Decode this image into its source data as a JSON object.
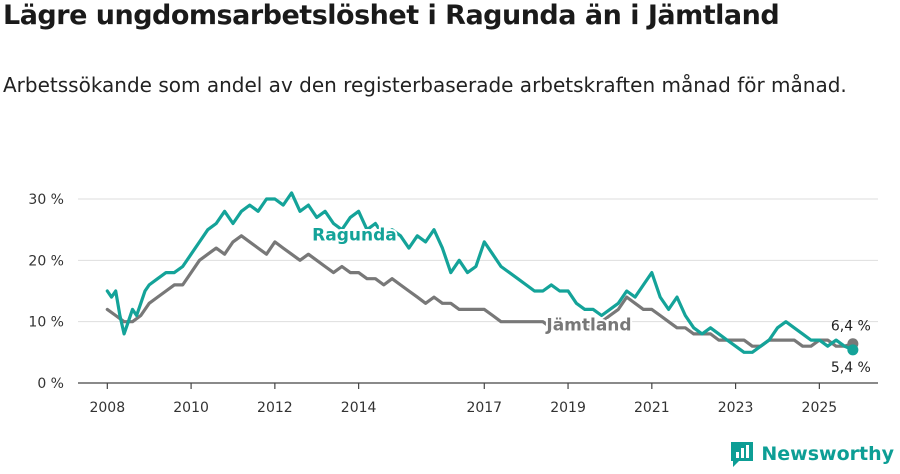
{
  "header": {
    "title": "Lägre ungdomsarbetslöshet i Ragunda än i Jämtland",
    "subtitle": "Arbetssökande som andel av den registerbaserade arbetskraften månad för månad."
  },
  "brand": {
    "name": "Newsworthy",
    "icon": "newsworthy-logo-icon",
    "color": "#0d9e95"
  },
  "chart_data": {
    "type": "line",
    "title": "Lägre ungdomsarbetslöshet i Ragunda än i Jämtland",
    "subtitle": "Arbetssökande som andel av den registerbaserade arbetskraften månad för månad.",
    "xlabel": "",
    "ylabel": "",
    "xlim": [
      2007.3,
      2026.4
    ],
    "ylim": [
      0,
      30
    ],
    "y_ticks": [
      0,
      10,
      20,
      30
    ],
    "y_tick_labels": [
      "0 %",
      "10 %",
      "20 %",
      "30 %"
    ],
    "x_ticks": [
      2008,
      2010,
      2012,
      2014,
      2017,
      2019,
      2021,
      2023,
      2025
    ],
    "x_tick_labels": [
      "2008",
      "2010",
      "2012",
      "2014",
      "2017",
      "2019",
      "2021",
      "2023",
      "2025"
    ],
    "grid": true,
    "legend": "inline labels",
    "series": [
      {
        "name": "Ragunda",
        "color": "#14a399",
        "label_anchor": {
          "x": 2013.9,
          "y": 23.2
        },
        "end_label": "5,4 %",
        "end_value": 5.4,
        "x": [
          2008.0,
          2008.1,
          2008.2,
          2008.3,
          2008.4,
          2008.5,
          2008.6,
          2008.7,
          2008.8,
          2008.9,
          2009.0,
          2009.2,
          2009.4,
          2009.6,
          2009.8,
          2010.0,
          2010.2,
          2010.4,
          2010.6,
          2010.8,
          2011.0,
          2011.2,
          2011.4,
          2011.6,
          2011.8,
          2012.0,
          2012.2,
          2012.4,
          2012.6,
          2012.8,
          2013.0,
          2013.2,
          2013.4,
          2013.6,
          2013.8,
          2014.0,
          2014.2,
          2014.4,
          2014.6,
          2014.8,
          2015.0,
          2015.2,
          2015.4,
          2015.6,
          2015.8,
          2016.0,
          2016.2,
          2016.4,
          2016.6,
          2016.8,
          2017.0,
          2017.2,
          2017.4,
          2017.6,
          2017.8,
          2018.0,
          2018.2,
          2018.4,
          2018.6,
          2018.8,
          2019.0,
          2019.2,
          2019.4,
          2019.6,
          2019.8,
          2020.0,
          2020.2,
          2020.4,
          2020.6,
          2020.8,
          2021.0,
          2021.2,
          2021.4,
          2021.6,
          2021.8,
          2022.0,
          2022.2,
          2022.4,
          2022.6,
          2022.8,
          2023.0,
          2023.2,
          2023.4,
          2023.6,
          2023.8,
          2024.0,
          2024.2,
          2024.4,
          2024.6,
          2024.8,
          2025.0,
          2025.2,
          2025.4,
          2025.6,
          2025.8
        ],
        "values": [
          15,
          14,
          15,
          11,
          8,
          10,
          12,
          11,
          13,
          15,
          16,
          17,
          18,
          18,
          19,
          21,
          23,
          25,
          26,
          28,
          26,
          28,
          29,
          28,
          30,
          30,
          29,
          31,
          28,
          29,
          27,
          28,
          26,
          25,
          27,
          28,
          25,
          26,
          24,
          25,
          24,
          22,
          24,
          23,
          25,
          22,
          18,
          20,
          18,
          19,
          23,
          21,
          19,
          18,
          17,
          16,
          15,
          15,
          16,
          15,
          15,
          13,
          12,
          12,
          11,
          12,
          13,
          15,
          14,
          16,
          18,
          14,
          12,
          14,
          11,
          9,
          8,
          9,
          8,
          7,
          6,
          5,
          5,
          6,
          7,
          9,
          10,
          9,
          8,
          7,
          7,
          6,
          7,
          6,
          5.4
        ]
      },
      {
        "name": "Jämtland",
        "color": "#787878",
        "label_anchor": {
          "x": 2019.5,
          "y": 8.6
        },
        "end_label": "6,4 %",
        "end_value": 6.4,
        "x": [
          2008.0,
          2008.2,
          2008.4,
          2008.6,
          2008.8,
          2009.0,
          2009.2,
          2009.4,
          2009.6,
          2009.8,
          2010.0,
          2010.2,
          2010.4,
          2010.6,
          2010.8,
          2011.0,
          2011.2,
          2011.4,
          2011.6,
          2011.8,
          2012.0,
          2012.2,
          2012.4,
          2012.6,
          2012.8,
          2013.0,
          2013.2,
          2013.4,
          2013.6,
          2013.8,
          2014.0,
          2014.2,
          2014.4,
          2014.6,
          2014.8,
          2015.0,
          2015.2,
          2015.4,
          2015.6,
          2015.8,
          2016.0,
          2016.2,
          2016.4,
          2016.6,
          2016.8,
          2017.0,
          2017.2,
          2017.4,
          2017.6,
          2017.8,
          2018.0,
          2018.2,
          2018.4,
          2018.6,
          2018.8,
          2019.0,
          2019.2,
          2019.4,
          2019.6,
          2019.8,
          2020.0,
          2020.2,
          2020.4,
          2020.6,
          2020.8,
          2021.0,
          2021.2,
          2021.4,
          2021.6,
          2021.8,
          2022.0,
          2022.2,
          2022.4,
          2022.6,
          2022.8,
          2023.0,
          2023.2,
          2023.4,
          2023.6,
          2023.8,
          2024.0,
          2024.2,
          2024.4,
          2024.6,
          2024.8,
          2025.0,
          2025.2,
          2025.4,
          2025.6,
          2025.8
        ],
        "values": [
          12,
          11,
          10,
          10,
          11,
          13,
          14,
          15,
          16,
          16,
          18,
          20,
          21,
          22,
          21,
          23,
          24,
          23,
          22,
          21,
          23,
          22,
          21,
          20,
          21,
          20,
          19,
          18,
          19,
          18,
          18,
          17,
          17,
          16,
          17,
          16,
          15,
          14,
          13,
          14,
          13,
          13,
          12,
          12,
          12,
          12,
          11,
          10,
          10,
          10,
          10,
          10,
          10,
          9,
          9,
          9,
          9,
          9,
          10,
          10,
          11,
          12,
          14,
          13,
          12,
          12,
          11,
          10,
          9,
          9,
          8,
          8,
          8,
          7,
          7,
          7,
          7,
          6,
          6,
          7,
          7,
          7,
          7,
          6,
          6,
          7,
          7,
          6,
          6,
          6.4
        ]
      }
    ]
  }
}
